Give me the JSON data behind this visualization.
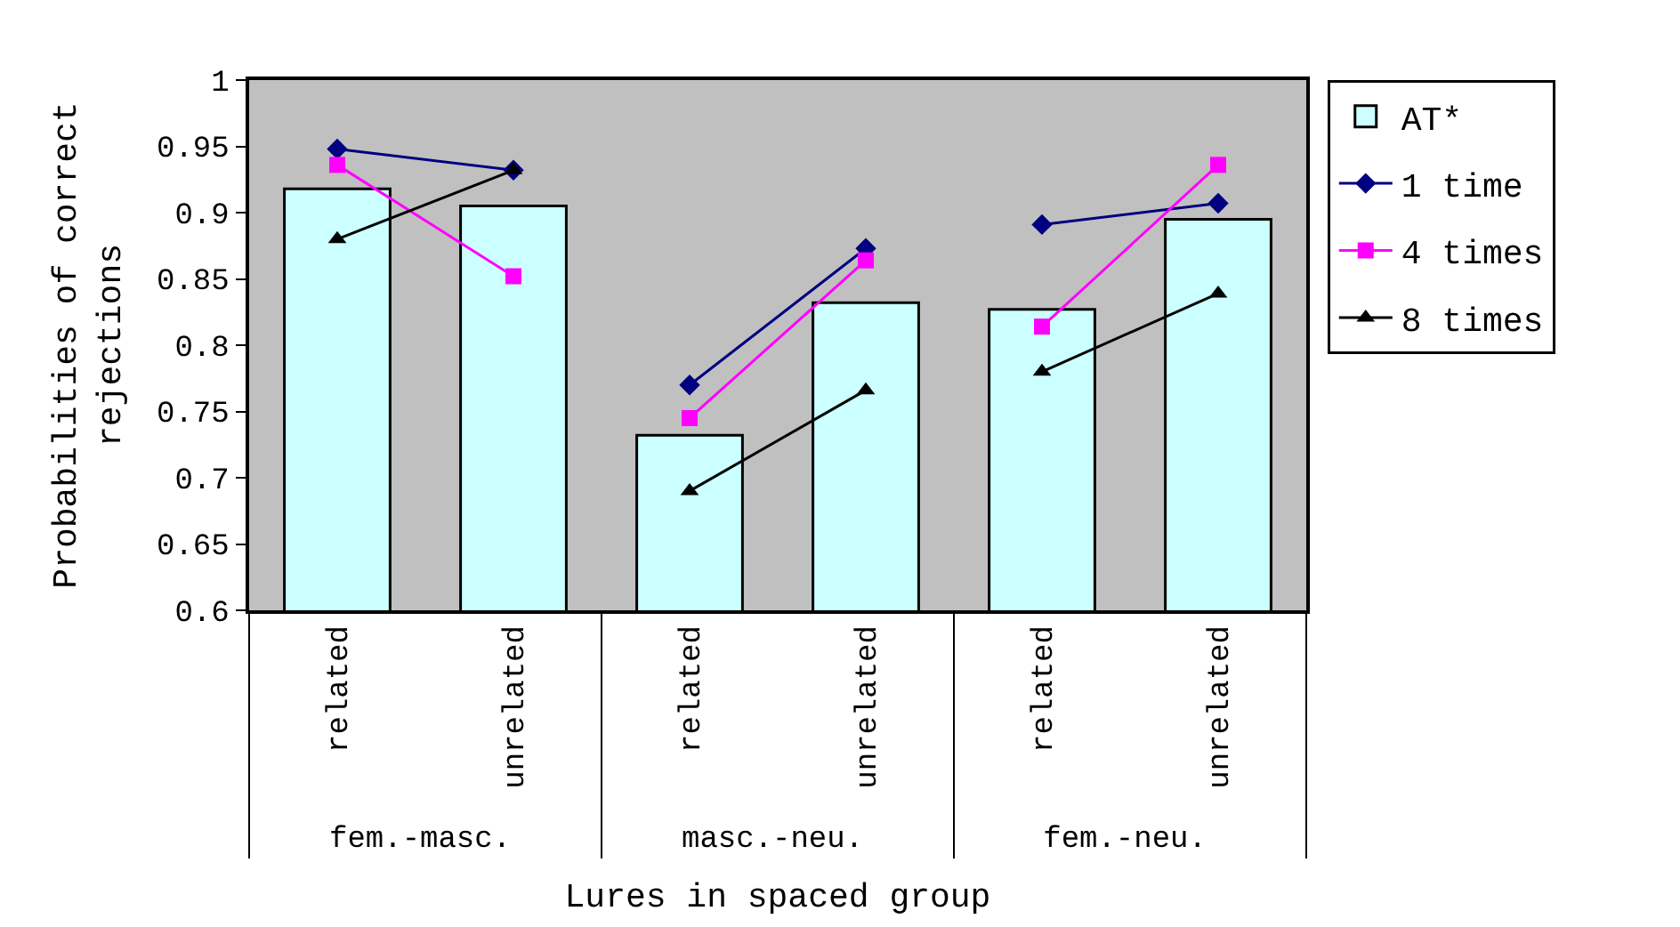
{
  "chart_data": {
    "type": "bar",
    "xlabel": "Lures in spaced group",
    "ylabel": "Probabilities of correct rejections",
    "categories": [
      "related",
      "unrelated",
      "related",
      "unrelated",
      "related",
      "unrelated"
    ],
    "annotations": [
      "fem.-masc.",
      "masc.-neu.",
      "fem.-neu."
    ],
    "series": [
      {
        "name": "AT*",
        "color": "#ccffff",
        "values": [
          0.918,
          0.905,
          0.732,
          0.832,
          0.827,
          0.895
        ]
      },
      {
        "name": "1 time",
        "type": "line",
        "color": "#000080",
        "marker": "diamond",
        "values": [
          0.948,
          0.932,
          0.77,
          0.873,
          0.891,
          0.907
        ]
      },
      {
        "name": "4 times",
        "type": "line",
        "color": "#ff00ff",
        "marker": "square",
        "values": [
          0.936,
          0.852,
          0.745,
          0.864,
          0.814,
          0.936
        ]
      },
      {
        "name": "8 times",
        "type": "line",
        "color": "#000000",
        "marker": "triangle",
        "values": [
          0.88,
          0.932,
          0.69,
          0.766,
          0.78,
          0.839
        ]
      }
    ],
    "ylim": [
      0.6,
      1
    ],
    "yticks": [
      0.6,
      0.65,
      0.7,
      0.75,
      0.8,
      0.85,
      0.9,
      0.95,
      1
    ],
    "grid": false,
    "legend": "right"
  }
}
